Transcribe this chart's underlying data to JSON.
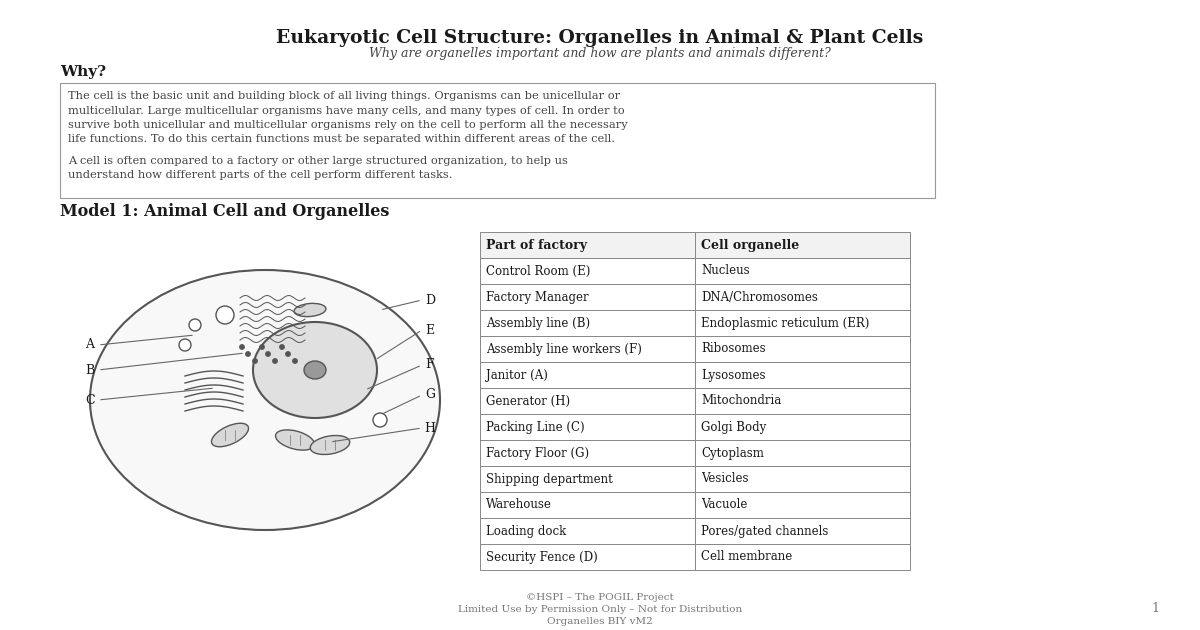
{
  "title": "Eukaryotic Cell Structure: Organelles in Animal & Plant Cells",
  "subtitle": "Why are organelles important and how are plants and animals different?",
  "why_heading": "Why?",
  "paragraph1_lines": [
    "The cell is the basic unit and building block of all living things. Organisms can be unicellular or",
    "multicellular. Large multicellular organisms have many cells, and many types of cell. In order to",
    "survive both unicellular and multicellular organisms rely on the cell to perform all the necessary",
    "life functions. To do this certain functions must be separated within different areas of the cell."
  ],
  "paragraph2_lines": [
    "A cell is often compared to a factory or other large structured organization, to help us",
    "understand how different parts of the cell perform different tasks."
  ],
  "model_heading": "Model 1: Animal Cell and Organelles",
  "table_headers": [
    "Part of factory",
    "Cell organelle"
  ],
  "table_rows": [
    [
      "Control Room (E)",
      "Nucleus"
    ],
    [
      "Factory Manager",
      "DNA/Chromosomes"
    ],
    [
      "Assembly line (B)",
      "Endoplasmic reticulum (ER)"
    ],
    [
      "Assembly line workers (F)",
      "Ribosomes"
    ],
    [
      "Janitor (A)",
      "Lysosomes"
    ],
    [
      "Generator (H)",
      "Mitochondria"
    ],
    [
      "Packing Line (C)",
      "Golgi Body"
    ],
    [
      "Factory Floor (G)",
      "Cytoplasm"
    ],
    [
      "Shipping department",
      "Vesicles"
    ],
    [
      "Warehouse",
      "Vacuole"
    ],
    [
      "Loading dock",
      "Pores/gated channels"
    ],
    [
      "Security Fence (D)",
      "Cell membrane"
    ]
  ],
  "footer_line1": "©HSPI – The POGIL Project",
  "footer_line2": "Limited Use by Permission Only – Not for Distribution",
  "footer_line3": "Organelles BIY vM2",
  "footer_page": "1",
  "bg_color": "#ffffff",
  "dark_text": "#1a1a1a",
  "mid_text": "#444444",
  "light_text": "#777777",
  "border_color": "#999999",
  "cell_fill": "#f8f8f8",
  "nucleus_fill": "#e0e0e0",
  "organelle_fill": "#d8d8d8",
  "header_fill": "#f2f2f2"
}
